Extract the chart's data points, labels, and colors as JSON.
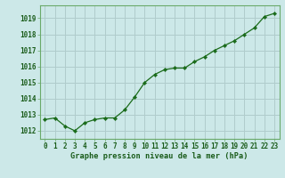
{
  "hours": [
    0,
    1,
    2,
    3,
    4,
    5,
    6,
    7,
    8,
    9,
    10,
    11,
    12,
    13,
    14,
    15,
    16,
    17,
    18,
    19,
    20,
    21,
    22,
    23
  ],
  "pressure": [
    1012.7,
    1012.8,
    1012.3,
    1012.0,
    1012.5,
    1012.7,
    1012.8,
    1012.8,
    1013.3,
    1014.1,
    1015.0,
    1015.5,
    1015.8,
    1015.9,
    1015.9,
    1016.3,
    1016.6,
    1017.0,
    1017.3,
    1017.6,
    1018.0,
    1018.4,
    1019.1,
    1019.3
  ],
  "line_color": "#1a6b1a",
  "marker_color": "#1a6b1a",
  "bg_color": "#cce8e8",
  "grid_color": "#b0cccc",
  "xlabel": "Graphe pression niveau de la mer (hPa)",
  "xlabel_color": "#1a5c1a",
  "ylim_min": 1011.5,
  "ylim_max": 1019.8,
  "yticks": [
    1012,
    1013,
    1014,
    1015,
    1016,
    1017,
    1018,
    1019
  ],
  "tick_color": "#1a5c1a",
  "spine_color": "#6aaa6a",
  "tick_fontsize": 5.5,
  "xlabel_fontsize": 6.2
}
